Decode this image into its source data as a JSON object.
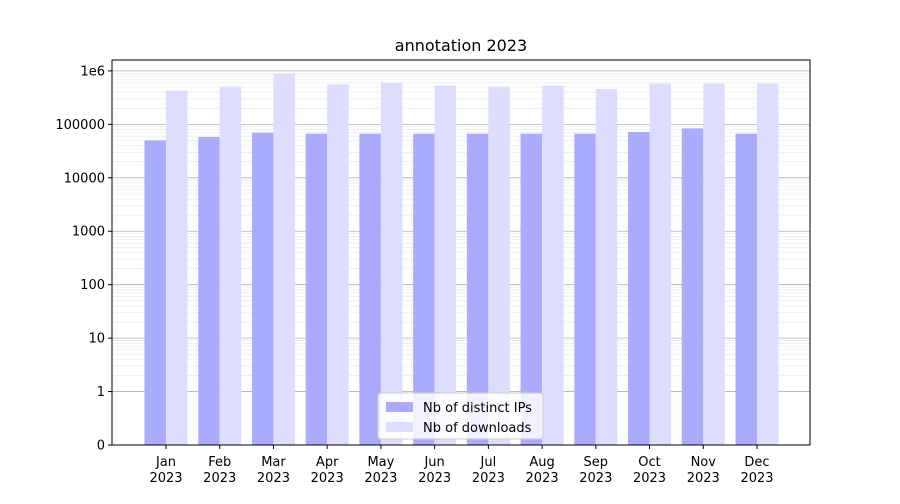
{
  "chart_data": {
    "type": "bar",
    "title": "annotation 2023",
    "xlabel": "",
    "ylabel": "",
    "yscale": "symlog",
    "ylim": [
      0,
      1600000
    ],
    "yticks": [
      {
        "value": 0,
        "label": "0"
      },
      {
        "value": 1,
        "label": "1"
      },
      {
        "value": 10,
        "label": "10"
      },
      {
        "value": 100,
        "label": "100"
      },
      {
        "value": 1000,
        "label": "1000"
      },
      {
        "value": 10000,
        "label": "10000"
      },
      {
        "value": 100000,
        "label": "100000"
      },
      {
        "value": 1000000,
        "label": "1e6"
      }
    ],
    "categories": [
      {
        "month": "Jan",
        "year": "2023"
      },
      {
        "month": "Feb",
        "year": "2023"
      },
      {
        "month": "Mar",
        "year": "2023"
      },
      {
        "month": "Apr",
        "year": "2023"
      },
      {
        "month": "May",
        "year": "2023"
      },
      {
        "month": "Jun",
        "year": "2023"
      },
      {
        "month": "Jul",
        "year": "2023"
      },
      {
        "month": "Aug",
        "year": "2023"
      },
      {
        "month": "Sep",
        "year": "2023"
      },
      {
        "month": "Oct",
        "year": "2023"
      },
      {
        "month": "Nov",
        "year": "2023"
      },
      {
        "month": "Dec",
        "year": "2023"
      }
    ],
    "series": [
      {
        "name": "Nb of distinct IPs",
        "color": "#aaaaff",
        "values": [
          50000,
          58000,
          70000,
          67000,
          67000,
          67000,
          67000,
          67000,
          67000,
          72000,
          84000,
          67000
        ]
      },
      {
        "name": "Nb of downloads",
        "color": "#ddddff",
        "values": [
          430000,
          510000,
          880000,
          560000,
          600000,
          530000,
          510000,
          530000,
          460000,
          580000,
          580000,
          580000
        ]
      }
    ],
    "grid": true,
    "legend_position": "bottom-center"
  }
}
